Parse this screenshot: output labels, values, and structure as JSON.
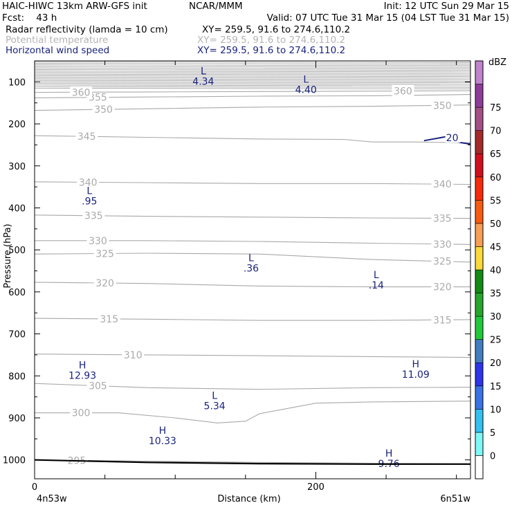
{
  "header": {
    "line1_left": "HAIC-HIWC 13km ARW-GFS init",
    "line1_center": "NCAR/MMM",
    "line1_right": "Init: 12 UTC Sun 29 Mar 15",
    "line2_left": "Fcst:    43 h",
    "line2_right": "Valid: 07 UTC Tue 31 Mar 15 (04 LST Tue 31 Mar 15)",
    "fields": [
      {
        "name": "Radar reflectivity (lamda = 10 cm)",
        "xy": "XY= 259.5, 91.6 to 274.6,110.2",
        "color": "#000000"
      },
      {
        "name": "Potential temperature",
        "xy": "XY= 259.5, 91.6 to 274.6,110.2",
        "color": "#b4b4b4"
      },
      {
        "name": "Horizontal wind speed",
        "xy": "XY= 259.5, 91.6 to 274.6,110.2",
        "color": "#1a237e"
      }
    ]
  },
  "chart_data": {
    "type": "cross-section contour",
    "xlabel": "Distance (km)",
    "ylabel": "Pressure (hPa)",
    "x_ticks": [
      0,
      200
    ],
    "xlim": [
      0,
      310
    ],
    "y_ticks": [
      100,
      200,
      300,
      400,
      500,
      600,
      700,
      800,
      900,
      1000
    ],
    "ylim": [
      50,
      1045
    ],
    "y_reversed": true,
    "endpoint_left": "4n53w",
    "endpoint_right": "6n51w",
    "theta_contours": [
      {
        "value": 295,
        "p": [
          [
            0,
            1000
          ],
          [
            80,
            1003
          ],
          [
            160,
            1006
          ],
          [
            240,
            1008
          ],
          [
            310,
            1009
          ]
        ]
      },
      {
        "value": 300,
        "p": [
          [
            0,
            888
          ],
          [
            60,
            888
          ],
          [
            100,
            900
          ],
          [
            130,
            912
          ],
          [
            150,
            908
          ],
          [
            160,
            890
          ],
          [
            200,
            865
          ],
          [
            240,
            862
          ],
          [
            310,
            860
          ]
        ]
      },
      {
        "value": 305,
        "p": [
          [
            0,
            818
          ],
          [
            80,
            828
          ],
          [
            160,
            832
          ],
          [
            240,
            828
          ],
          [
            310,
            827
          ]
        ]
      },
      {
        "value": 310,
        "p": [
          [
            0,
            748
          ],
          [
            80,
            750
          ],
          [
            160,
            752
          ],
          [
            240,
            754
          ],
          [
            310,
            756
          ]
        ]
      },
      {
        "value": 315,
        "p": [
          [
            0,
            663
          ],
          [
            80,
            665
          ],
          [
            160,
            668
          ],
          [
            240,
            668
          ],
          [
            310,
            666
          ]
        ]
      },
      {
        "value": 320,
        "p": [
          [
            0,
            577
          ],
          [
            80,
            580
          ],
          [
            160,
            586
          ],
          [
            240,
            588
          ],
          [
            310,
            588
          ]
        ]
      },
      {
        "value": 325,
        "p": [
          [
            0,
            510
          ],
          [
            80,
            508
          ],
          [
            160,
            510
          ],
          [
            240,
            523
          ],
          [
            310,
            529
          ]
        ]
      },
      {
        "value": 330,
        "p": [
          [
            0,
            478
          ],
          [
            80,
            478
          ],
          [
            160,
            480
          ],
          [
            240,
            484
          ],
          [
            310,
            487
          ]
        ]
      },
      {
        "value": 335,
        "p": [
          [
            0,
            417
          ],
          [
            80,
            420
          ],
          [
            160,
            422
          ],
          [
            240,
            424
          ],
          [
            310,
            425
          ]
        ]
      },
      {
        "value": 340,
        "p": [
          [
            0,
            338
          ],
          [
            80,
            340
          ],
          [
            160,
            342
          ],
          [
            240,
            342
          ],
          [
            310,
            344
          ]
        ]
      },
      {
        "value": 345,
        "p": [
          [
            0,
            228
          ],
          [
            80,
            232
          ],
          [
            160,
            236
          ],
          [
            220,
            237
          ],
          [
            240,
            243
          ],
          [
            270,
            243
          ],
          [
            310,
            245
          ]
        ]
      },
      {
        "value": 350,
        "p": [
          [
            0,
            168
          ],
          [
            80,
            164
          ],
          [
            160,
            160
          ],
          [
            240,
            158
          ],
          [
            310,
            155
          ]
        ]
      },
      {
        "value": 355,
        "p": [
          [
            0,
            138
          ],
          [
            80,
            136
          ],
          [
            160,
            134
          ],
          [
            240,
            133
          ],
          [
            310,
            130
          ]
        ]
      },
      {
        "value": 360,
        "p": [
          [
            0,
            125
          ],
          [
            80,
            124
          ],
          [
            160,
            123
          ],
          [
            240,
            122
          ],
          [
            310,
            121
          ]
        ]
      }
    ],
    "wind_speed_contours": [
      {
        "value": 20,
        "p": [
          [
            277,
            240
          ],
          [
            290,
            232
          ],
          [
            302,
            225
          ],
          [
            302,
            244
          ],
          [
            310,
            248
          ]
        ]
      }
    ],
    "extrema": [
      {
        "kind": "L",
        "value": "4.34",
        "x": 120,
        "p": 82
      },
      {
        "kind": "L",
        "value": "4.40",
        "x": 193,
        "p": 102
      },
      {
        "kind": "L",
        "value": ".95",
        "x": 39,
        "p": 367
      },
      {
        "kind": "L",
        "value": ".36",
        "x": 154,
        "p": 527
      },
      {
        "kind": "L",
        "value": ".14",
        "x": 243,
        "p": 567
      },
      {
        "kind": "H",
        "value": "12.93",
        "x": 34,
        "p": 782
      },
      {
        "kind": "H",
        "value": "11.09",
        "x": 271,
        "p": 780
      },
      {
        "kind": "L",
        "value": "5.34",
        "x": 128,
        "p": 855
      },
      {
        "kind": "H",
        "value": "10.33",
        "x": 91,
        "p": 938
      },
      {
        "kind": "H",
        "value": "9.76",
        "x": 252,
        "p": 992
      }
    ],
    "terrain_pressure": [
      [
        0,
        1000
      ],
      [
        80,
        1006
      ],
      [
        160,
        1009
      ],
      [
        240,
        1010
      ],
      [
        310,
        1010
      ]
    ],
    "colorbar": {
      "title": "dBZ",
      "levels": [
        "0",
        "5",
        "10",
        "15",
        "20",
        "25",
        "30",
        "35",
        "40",
        "45",
        "50",
        "55",
        "60",
        "65",
        "70",
        "75"
      ],
      "colors": [
        "#ffffff",
        "#7ff7f7",
        "#33c1f2",
        "#3b72e6",
        "#2e34e9",
        "#427ebf",
        "#22c83b",
        "#26a62c",
        "#138a13",
        "#f9d93b",
        "#f79e55",
        "#f75b12",
        "#f72b0b",
        "#d00f1e",
        "#a52a2a",
        "#a44f84",
        "#8e3b99",
        "#c083cd"
      ]
    }
  }
}
